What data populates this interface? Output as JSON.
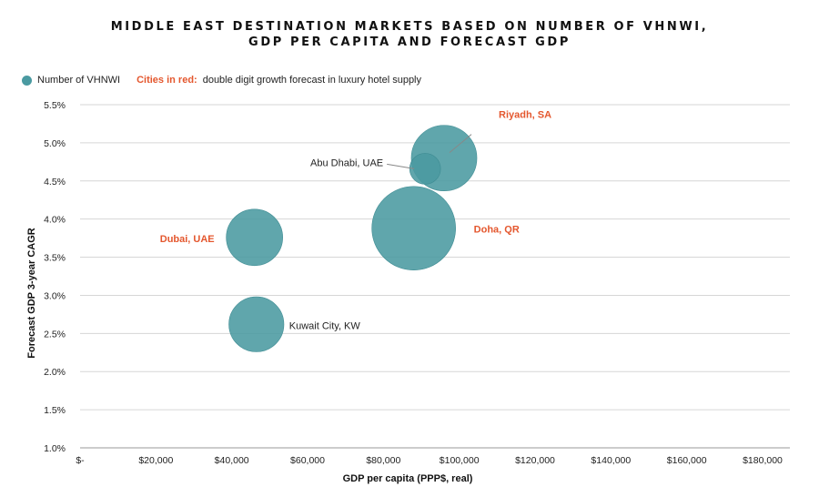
{
  "title": {
    "line1": "MIDDLE EAST DESTINATION MARKETS BASED ON NUMBER OF VHNWI,",
    "line2": "GDP PER CAPITA AND FORECAST GDP"
  },
  "legend": {
    "series_label": "Number of VHNWI",
    "red_label": "Cities in red:",
    "red_description": "double digit growth forecast in luxury hotel supply"
  },
  "colors": {
    "bubble": "#4a9aa1",
    "red_text": "#e4572e",
    "grid": "#d6d6d6"
  },
  "chart_data": {
    "type": "scatter",
    "subtype": "bubble",
    "xlabel": "GDP per capita (PPP$, real)",
    "ylabel": "Forecast GDP 3-year CAGR",
    "xlim": [
      0,
      180000
    ],
    "ylim": [
      1.0,
      5.5
    ],
    "x_ticks": [
      0,
      20000,
      40000,
      60000,
      80000,
      100000,
      120000,
      140000,
      160000,
      180000
    ],
    "x_tick_labels": [
      "$-",
      "$20,000",
      "$40,000",
      "$60,000",
      "$80,000",
      "$100,000",
      "$120,000",
      "$140,000",
      "$160,000",
      "$180,000"
    ],
    "y_ticks": [
      1.0,
      1.5,
      2.0,
      2.5,
      3.0,
      3.5,
      4.0,
      4.5,
      5.0,
      5.5
    ],
    "y_tick_labels": [
      "1.0%",
      "1.5%",
      "2.0%",
      "2.5%",
      "3.0%",
      "3.5%",
      "4.0%",
      "4.5%",
      "5.0%",
      "5.5%"
    ],
    "grid": true,
    "legend_position": "top-left",
    "series": [
      {
        "name": "Number of VHNWI",
        "points": [
          {
            "label": "Riyadh, SA",
            "x": 96000,
            "y": 4.8,
            "size": 1.35,
            "highlight": true
          },
          {
            "label": "Abu Dhabi, UAE",
            "x": 91000,
            "y": 4.66,
            "size": 0.3,
            "highlight": false
          },
          {
            "label": "Doha, QR",
            "x": 88000,
            "y": 3.88,
            "size": 2.2,
            "highlight": true
          },
          {
            "label": "Dubai, UAE",
            "x": 46000,
            "y": 3.76,
            "size": 1.0,
            "highlight": true
          },
          {
            "label": "Kuwait City, KW",
            "x": 46500,
            "y": 2.62,
            "size": 0.95,
            "highlight": false
          }
        ]
      }
    ]
  }
}
